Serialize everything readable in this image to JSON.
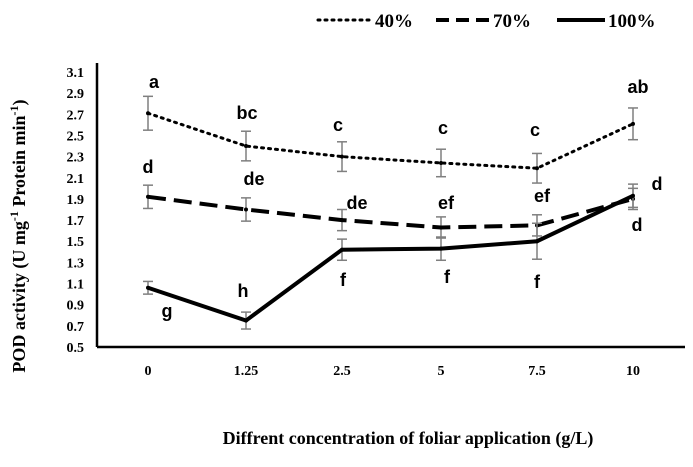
{
  "chart_data": {
    "type": "line",
    "xlabel": "Diffrent concentration of foliar application (g/L)",
    "ylabel_main": "POD activity (U mg",
    "ylabel_sup1": "-1",
    "ylabel_mid": " Protein min",
    "ylabel_sup2": "-1",
    "ylabel_end": ")",
    "categories": [
      "0",
      "1.25",
      "2.5",
      "5",
      "7.5",
      "10"
    ],
    "ylim": [
      0.5,
      3.1
    ],
    "yticks": [
      "0.5",
      "0.7",
      "0.9",
      "1.1",
      "1.3",
      "1.5",
      "1.7",
      "1.9",
      "2.1",
      "2.3",
      "2.5",
      "2.7",
      "2.9",
      "3.1"
    ],
    "legend_position": "top-right",
    "grid": false,
    "series": [
      {
        "name": "40%",
        "style": "dotted",
        "values": [
          2.71,
          2.4,
          2.3,
          2.24,
          2.19,
          2.61
        ],
        "errors": [
          0.16,
          0.14,
          0.14,
          0.13,
          0.14,
          0.15
        ],
        "letters": [
          "a",
          "bc",
          "c",
          "c",
          "c",
          "ab"
        ]
      },
      {
        "name": "70%",
        "style": "dashed",
        "values": [
          1.92,
          1.8,
          1.7,
          1.63,
          1.65,
          1.9
        ],
        "errors": [
          0.11,
          0.11,
          0.1,
          0.1,
          0.1,
          0.1
        ],
        "letters": [
          "d",
          "de",
          "de",
          "ef",
          "ef",
          "d"
        ]
      },
      {
        "name": "100%",
        "style": "solid",
        "values": [
          1.06,
          0.75,
          1.42,
          1.43,
          1.5,
          1.93
        ],
        "errors": [
          0.06,
          0.08,
          0.1,
          0.11,
          0.17,
          0.11
        ],
        "letters": [
          "g",
          "h",
          "f",
          "f",
          "f",
          "d"
        ]
      }
    ]
  }
}
